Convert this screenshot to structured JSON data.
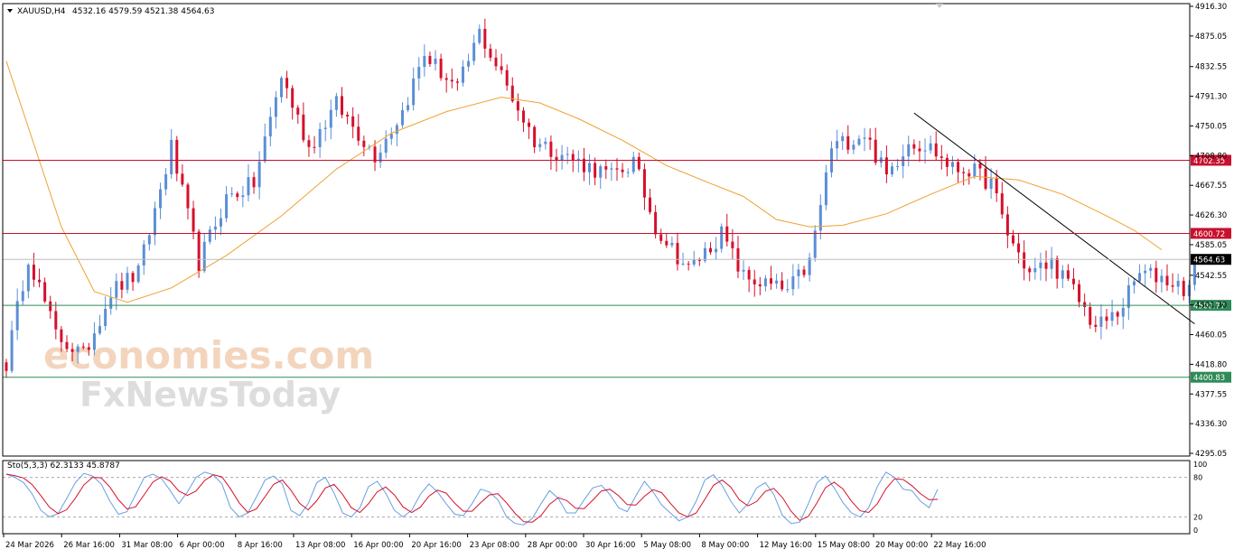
{
  "header": {
    "symbol": "XAUUSD,H4",
    "ohlc": "4532.16 4579.59 4521.38 4564.63"
  },
  "stoch": {
    "label": "Sto(5,3,3) 62.3133 45.8787"
  },
  "watermark": {
    "line1": "economies.com",
    "line2": "FxNewsToday"
  },
  "colors": {
    "bull": "#5b8fd6",
    "bear": "#d6102b",
    "ma": "#f0a030",
    "resistance": "#c8102e",
    "support": "#2e8b57",
    "current": "#000000",
    "stoch_main": "#6a9fe0",
    "stoch_signal": "#d6102b",
    "trendline": "#000000"
  },
  "chart_data": [
    {
      "type": "candlestick",
      "symbol": "XAUUSD",
      "timeframe": "H4",
      "ylim": [
        4295.05,
        4916.3
      ],
      "y_ticks": [
        "4916.30",
        "4875.05",
        "4832.55",
        "4791.30",
        "4750.05",
        "4708.80",
        "4667.55",
        "4626.30",
        "4585.05",
        "4542.55",
        "4501.30",
        "4460.05",
        "4418.80",
        "4377.55",
        "4336.30",
        "4295.05"
      ],
      "x_ticks": [
        "24 Mar 2026",
        "26 Mar 16:00",
        "31 Mar 08:00",
        "6 Apr 00:00",
        "8 Apr 16:00",
        "13 Apr 08:00",
        "16 Apr 00:00",
        "20 Apr 16:00",
        "23 Apr 08:00",
        "28 Apr 00:00",
        "30 Apr 16:00",
        "5 May 08:00",
        "8 May 00:00",
        "12 May 16:00",
        "15 May 08:00",
        "20 May 00:00",
        "22 May 16:00"
      ],
      "waypoints": [
        [
          0,
          4420
        ],
        [
          4,
          4570
        ],
        [
          9,
          4460
        ],
        [
          14,
          4430
        ],
        [
          19,
          4520
        ],
        [
          24,
          4545
        ],
        [
          30,
          4720
        ],
        [
          35,
          4560
        ],
        [
          40,
          4650
        ],
        [
          45,
          4670
        ],
        [
          50,
          4820
        ],
        [
          55,
          4720
        ],
        [
          60,
          4780
        ],
        [
          67,
          4710
        ],
        [
          72,
          4770
        ],
        [
          76,
          4850
        ],
        [
          82,
          4800
        ],
        [
          86,
          4880
        ],
        [
          92,
          4790
        ],
        [
          96,
          4730
        ],
        [
          104,
          4700
        ],
        [
          110,
          4680
        ],
        [
          114,
          4700
        ],
        [
          118,
          4610
        ],
        [
          124,
          4550
        ],
        [
          130,
          4600
        ],
        [
          134,
          4540
        ],
        [
          138,
          4530
        ],
        [
          142,
          4520
        ],
        [
          146,
          4560
        ],
        [
          150,
          4720
        ],
        [
          156,
          4740
        ],
        [
          160,
          4680
        ],
        [
          164,
          4730
        ],
        [
          168,
          4720
        ],
        [
          172,
          4690
        ],
        [
          175,
          4690
        ],
        [
          179,
          4670
        ],
        [
          182,
          4600
        ],
        [
          186,
          4545
        ],
        [
          190,
          4560
        ],
        [
          194,
          4520
        ],
        [
          198,
          4470
        ],
        [
          202,
          4490
        ],
        [
          206,
          4545
        ],
        [
          210,
          4540
        ],
        [
          214,
          4525
        ],
        [
          216,
          4528
        ]
      ],
      "price_levels": [
        {
          "value": 4702.35,
          "label": "4702.35",
          "role": "resistance"
        },
        {
          "value": 4600.72,
          "label": "4600.72",
          "role": "resistance"
        },
        {
          "value": 4564.63,
          "label": "4564.63",
          "role": "current"
        },
        {
          "value": 4500.77,
          "label": "4500.77",
          "role": "support"
        },
        {
          "value": 4400.83,
          "label": "4400.83",
          "role": "support"
        }
      ],
      "moving_average": [
        [
          0,
          4840
        ],
        [
          10,
          4610
        ],
        [
          16,
          4520
        ],
        [
          22,
          4505
        ],
        [
          30,
          4525
        ],
        [
          40,
          4570
        ],
        [
          50,
          4625
        ],
        [
          60,
          4690
        ],
        [
          70,
          4740
        ],
        [
          80,
          4770
        ],
        [
          90,
          4790
        ],
        [
          97,
          4782
        ],
        [
          104,
          4760
        ],
        [
          112,
          4730
        ],
        [
          120,
          4695
        ],
        [
          128,
          4670
        ],
        [
          134,
          4652
        ],
        [
          140,
          4620
        ],
        [
          146,
          4610
        ],
        [
          152,
          4612
        ],
        [
          160,
          4628
        ],
        [
          168,
          4655
        ],
        [
          176,
          4680
        ],
        [
          184,
          4675
        ],
        [
          192,
          4655
        ],
        [
          200,
          4625
        ],
        [
          205,
          4605
        ],
        [
          210,
          4578
        ]
      ],
      "trendline": [
        [
          165,
          4768
        ],
        [
          216,
          4475
        ]
      ]
    },
    {
      "type": "line",
      "title": "Sto(5,3,3)",
      "values": {
        "main": 62.3133,
        "signal": 45.8787
      },
      "ylim": [
        0,
        100
      ],
      "y_ticks": [
        "100",
        "80",
        "20",
        "0"
      ],
      "levels": [
        80,
        20
      ],
      "series": [
        {
          "name": "main",
          "values": [
            85,
            80,
            72,
            55,
            30,
            20,
            25,
            48,
            72,
            86,
            82,
            70,
            44,
            24,
            28,
            54,
            80,
            85,
            78,
            60,
            40,
            58,
            80,
            88,
            84,
            70,
            34,
            20,
            26,
            50,
            76,
            82,
            70,
            30,
            22,
            40,
            72,
            80,
            56,
            26,
            20,
            34,
            66,
            74,
            56,
            30,
            20,
            30,
            54,
            70,
            58,
            40,
            24,
            22,
            40,
            62,
            58,
            46,
            20,
            10,
            8,
            18,
            40,
            60,
            48,
            26,
            26,
            46,
            64,
            68,
            54,
            34,
            28,
            52,
            74,
            58,
            38,
            26,
            14,
            20,
            44,
            76,
            84,
            68,
            44,
            26,
            40,
            64,
            72,
            54,
            22,
            10,
            12,
            40,
            72,
            82,
            64,
            42,
            26,
            20,
            34,
            66,
            88,
            80,
            62,
            60,
            44,
            34,
            62
          ]
        }
      ]
    }
  ]
}
